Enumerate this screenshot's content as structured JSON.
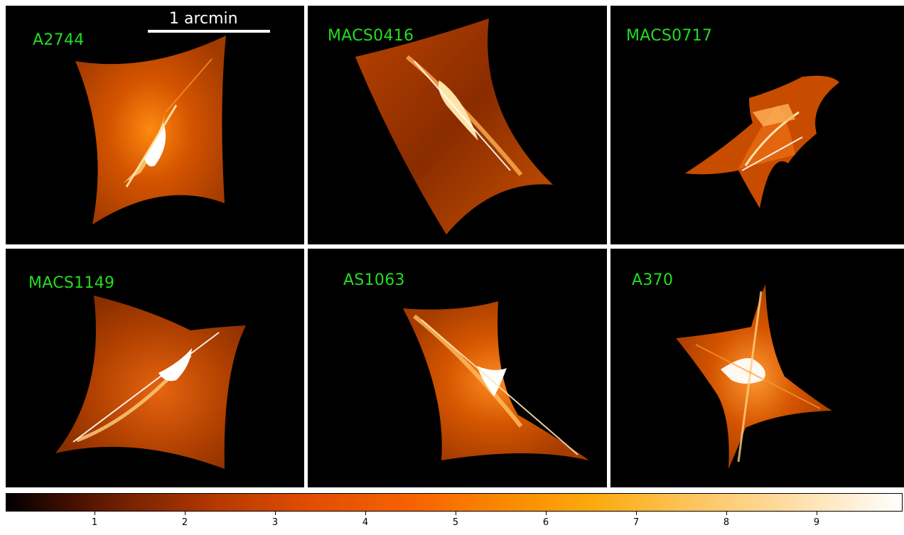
{
  "scalebar": {
    "label": "1 arcmin"
  },
  "panels": [
    {
      "name": "A2744"
    },
    {
      "name": "MACS0416"
    },
    {
      "name": "MACS0717"
    },
    {
      "name": "MACS1149"
    },
    {
      "name": "AS1063"
    },
    {
      "name": "A370"
    }
  ],
  "colorbar": {
    "ticks": [
      "1",
      "2",
      "3",
      "4",
      "5",
      "6",
      "7",
      "8",
      "9"
    ],
    "colormap": [
      "#000000",
      "#7a2300",
      "#e24d00",
      "#fb8a00",
      "#fdc35a",
      "#ffffff"
    ]
  },
  "colors": {
    "label": "#22dd22",
    "background": "#000000",
    "fill": "#c44a00",
    "caustic": "#ffffff"
  }
}
